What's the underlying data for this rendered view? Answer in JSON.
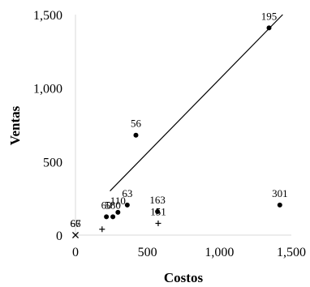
{
  "chart_data": {
    "type": "scatter",
    "xlabel": "Costos",
    "ylabel": "Ventas",
    "xlim": [
      0,
      1500
    ],
    "ylim": [
      0,
      1500
    ],
    "x_ticks": [
      0,
      500,
      1000,
      1500
    ],
    "y_ticks": [
      0,
      500,
      1000,
      1500
    ],
    "x_tick_labels": [
      "0",
      "500",
      "1,000",
      "1,500"
    ],
    "y_tick_labels": [
      "0",
      "500",
      "1,000",
      "1,500"
    ],
    "grid": false,
    "legend": "none",
    "series": [
      {
        "marker": "circle",
        "points": [
          {
            "x": 1345,
            "y": 1410,
            "label": "195"
          },
          {
            "x": 420,
            "y": 680,
            "label": "56"
          },
          {
            "x": 1420,
            "y": 205,
            "label": "301"
          },
          {
            "x": 570,
            "y": 160,
            "label": "163"
          },
          {
            "x": 360,
            "y": 205,
            "label": "63"
          },
          {
            "x": 295,
            "y": 155,
            "label": "110"
          },
          {
            "x": 260,
            "y": 125,
            "label": "580"
          },
          {
            "x": 215,
            "y": 125,
            "label": "60"
          }
        ]
      },
      {
        "marker": "plus",
        "points": [
          {
            "x": 575,
            "y": 80,
            "label": "151"
          },
          {
            "x": 185,
            "y": 40,
            "label": ""
          }
        ]
      },
      {
        "marker": "cross",
        "points": [
          {
            "x": 0,
            "y": 0,
            "label": "66"
          },
          {
            "x": 0,
            "y": 0,
            "label": "67"
          }
        ]
      }
    ],
    "trendline": {
      "x": [
        240,
        1440
      ],
      "y": [
        300,
        1500
      ]
    }
  }
}
